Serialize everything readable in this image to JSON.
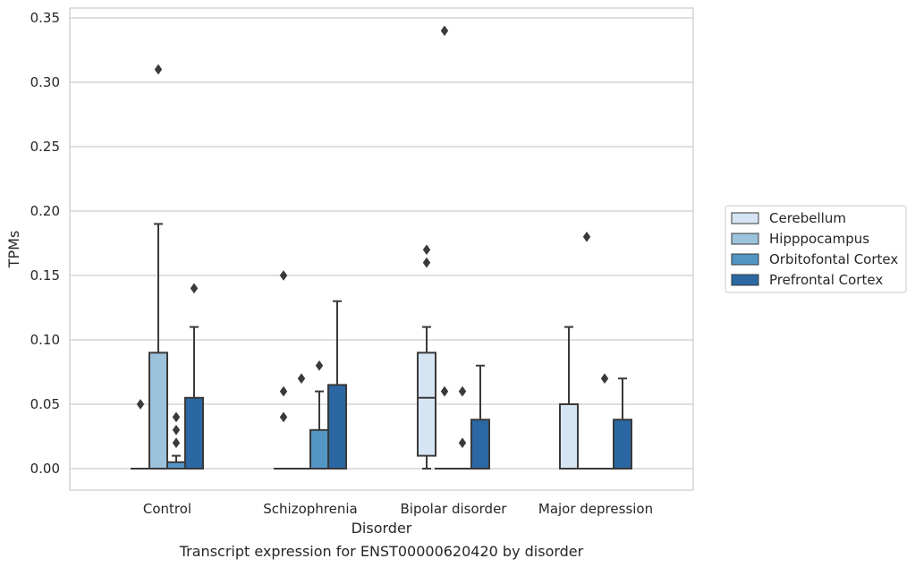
{
  "chart_data": {
    "type": "box",
    "xlabel": "Disorder",
    "ylabel": "TPMs",
    "caption": "Transcript expression for ENST00000620420 by disorder",
    "ylim": [
      -0.017,
      0.357
    ],
    "yticks": [
      0.0,
      0.05,
      0.1,
      0.15,
      0.2,
      0.25,
      0.3,
      0.35
    ],
    "ytick_labels": [
      "0.00",
      "0.05",
      "0.10",
      "0.15",
      "0.20",
      "0.25",
      "0.30",
      "0.35"
    ],
    "grid": "horizontal",
    "legend_position": "right",
    "categories": [
      "Control",
      "Schizophrenia",
      "Bipolar disorder",
      "Major depression"
    ],
    "series": [
      {
        "name": "Cerebellum",
        "color": "#d6e5f4",
        "boxes": [
          {
            "q1": 0.0,
            "median": 0.0,
            "q3": 0.0,
            "whislo": 0.0,
            "whishi": 0.0,
            "fliers": [
              0.05
            ]
          },
          {
            "q1": 0.0,
            "median": 0.0,
            "q3": 0.0,
            "whislo": 0.0,
            "whishi": 0.0,
            "fliers": [
              0.15,
              0.06,
              0.04
            ]
          },
          {
            "q1": 0.01,
            "median": 0.055,
            "q3": 0.09,
            "whislo": 0.0,
            "whishi": 0.11,
            "fliers": [
              0.17,
              0.16
            ]
          },
          {
            "q1": 0.0,
            "median": 0.0,
            "q3": 0.05,
            "whislo": 0.0,
            "whishi": 0.11,
            "fliers": []
          }
        ]
      },
      {
        "name": "Hipppocampus",
        "color": "#9cc3dc",
        "boxes": [
          {
            "q1": 0.0,
            "median": 0.0,
            "q3": 0.09,
            "whislo": 0.0,
            "whishi": 0.19,
            "fliers": [
              0.31
            ]
          },
          {
            "q1": 0.0,
            "median": 0.0,
            "q3": 0.0,
            "whislo": 0.0,
            "whishi": 0.0,
            "fliers": [
              0.07
            ]
          },
          {
            "q1": 0.0,
            "median": 0.0,
            "q3": 0.0,
            "whislo": 0.0,
            "whishi": 0.0,
            "fliers": [
              0.06,
              0.34
            ]
          },
          {
            "q1": 0.0,
            "median": 0.0,
            "q3": 0.0,
            "whislo": 0.0,
            "whishi": 0.0,
            "fliers": [
              0.18
            ]
          }
        ]
      },
      {
        "name": "Orbitofontal Cortex",
        "color": "#5396c4",
        "boxes": [
          {
            "q1": 0.0,
            "median": 0.0,
            "q3": 0.005,
            "whislo": 0.0,
            "whishi": 0.01,
            "fliers": [
              0.04,
              0.03,
              0.02
            ]
          },
          {
            "q1": 0.0,
            "median": 0.0,
            "q3": 0.03,
            "whislo": 0.0,
            "whishi": 0.06,
            "fliers": [
              0.08
            ]
          },
          {
            "q1": 0.0,
            "median": 0.0,
            "q3": 0.0,
            "whislo": 0.0,
            "whishi": 0.0,
            "fliers": [
              0.06,
              0.02
            ]
          },
          {
            "q1": 0.0,
            "median": 0.0,
            "q3": 0.0,
            "whislo": 0.0,
            "whishi": 0.0,
            "fliers": [
              0.07
            ]
          }
        ]
      },
      {
        "name": "Prefrontal Cortex",
        "color": "#2a67a3",
        "boxes": [
          {
            "q1": 0.0,
            "median": 0.0,
            "q3": 0.055,
            "whislo": 0.0,
            "whishi": 0.11,
            "fliers": [
              0.14
            ]
          },
          {
            "q1": 0.0,
            "median": 0.0,
            "q3": 0.065,
            "whislo": 0.0,
            "whishi": 0.13,
            "fliers": []
          },
          {
            "q1": 0.0,
            "median": 0.0,
            "q3": 0.038,
            "whislo": 0.0,
            "whishi": 0.08,
            "fliers": []
          },
          {
            "q1": 0.0,
            "median": 0.0,
            "q3": 0.038,
            "whislo": 0.0,
            "whishi": 0.07,
            "fliers": []
          }
        ]
      }
    ]
  }
}
